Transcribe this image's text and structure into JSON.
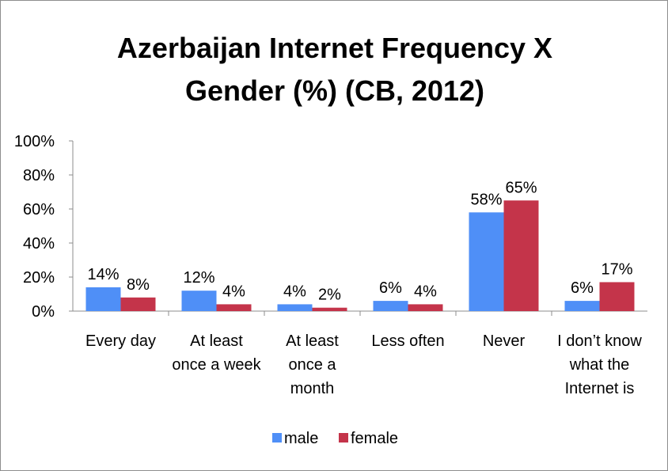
{
  "colors": {
    "male": "#4f8ff7",
    "female": "#c4344a",
    "axis": "#8c8c8c"
  },
  "chart_data": {
    "type": "bar",
    "title_lines": [
      "Azerbaijan Internet Frequency X",
      "Gender (%) (CB, 2012)"
    ],
    "categories": [
      [
        "Every day"
      ],
      [
        "At least",
        "once a week"
      ],
      [
        "At least",
        "once a",
        "month"
      ],
      [
        "Less often"
      ],
      [
        "Never"
      ],
      [
        "I don’t know",
        "what the",
        "Internet is"
      ]
    ],
    "series": [
      {
        "name": "male",
        "values": [
          14,
          12,
          4,
          6,
          58,
          6
        ],
        "labels": [
          "14%",
          "12%",
          "4%",
          "6%",
          "58%",
          "6%"
        ]
      },
      {
        "name": "female",
        "values": [
          8,
          4,
          2,
          4,
          65,
          17
        ],
        "labels": [
          "8%",
          "4%",
          "2%",
          "4%",
          "65%",
          "17%"
        ]
      }
    ],
    "ylim": [
      0,
      100
    ],
    "yticks": [
      0,
      20,
      40,
      60,
      80,
      100
    ],
    "ytick_labels": [
      "0%",
      "20%",
      "40%",
      "60%",
      "80%",
      "100%"
    ],
    "grid": false,
    "legend_position": "bottom"
  }
}
